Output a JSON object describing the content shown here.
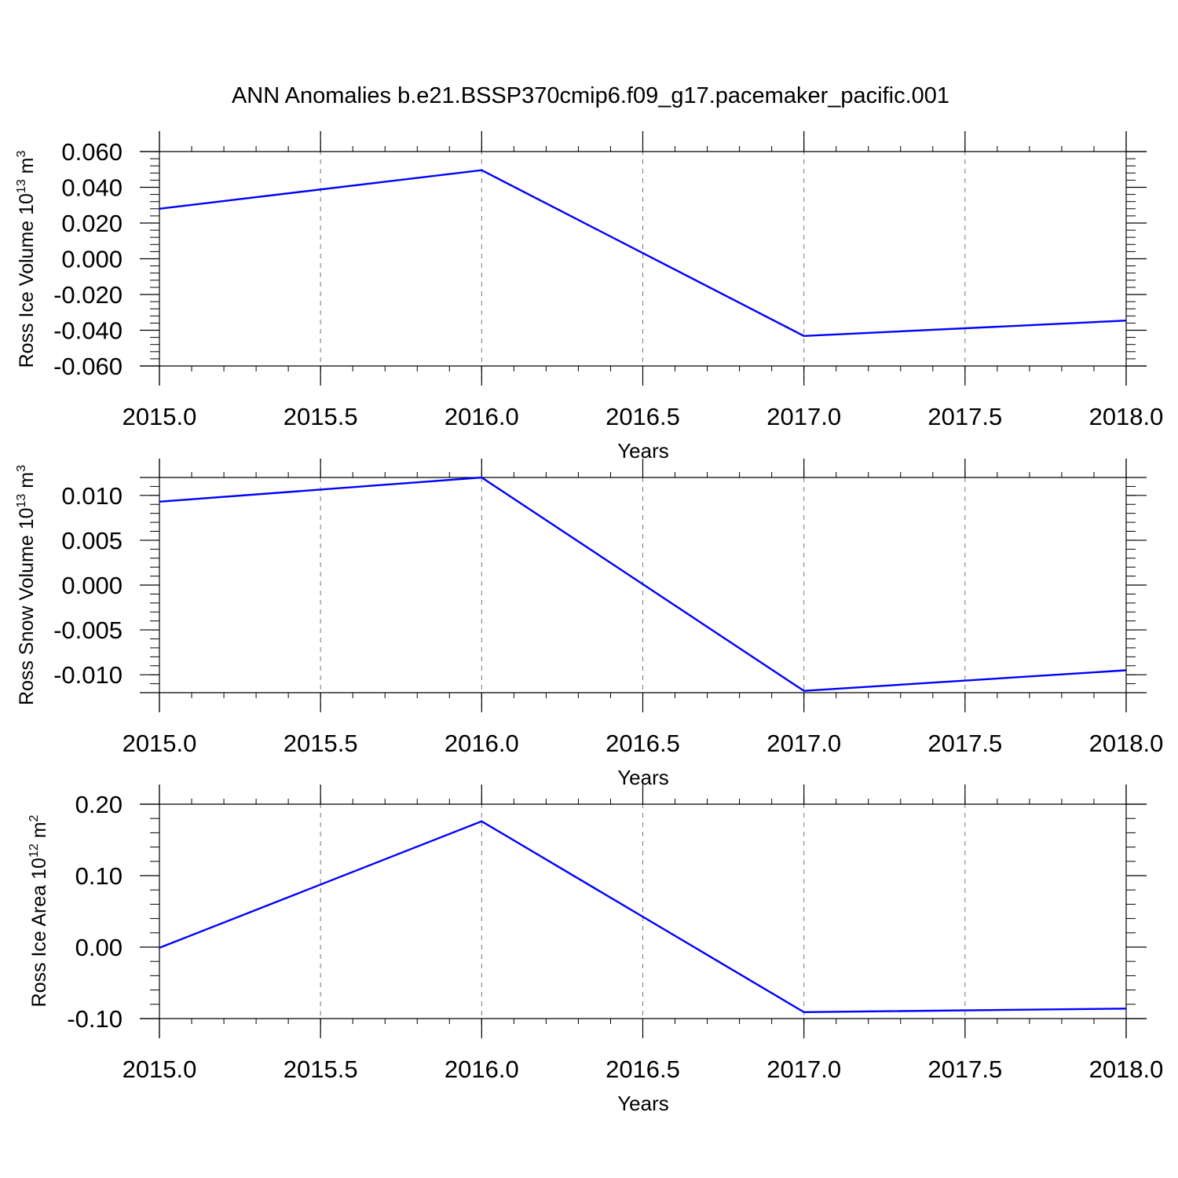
{
  "title": "ANN Anomalies b.e21.BSSP370cmip6.f09_g17.pacemaker_pacific.001",
  "chart_data": [
    {
      "type": "line",
      "title": "",
      "xlabel": "Years",
      "ylabel": {
        "text": "Ross Ice Volume 10",
        "exp": "13",
        "unit": " m",
        "unit_exp": "3"
      },
      "x": [
        2015,
        2016,
        2017,
        2018
      ],
      "x_ticks": [
        "2015.0",
        "2015.5",
        "2016.0",
        "2016.5",
        "2017.0",
        "2017.5",
        "2018.0"
      ],
      "xlim": [
        2015,
        2018
      ],
      "ylim": [
        -0.06,
        0.06
      ],
      "y_ticks": [
        "0.060",
        "0.040",
        "0.020",
        "0.000",
        "-0.020",
        "-0.040",
        "-0.060"
      ],
      "series": [
        {
          "values": [
            0.028,
            0.0496,
            -0.0432,
            -0.0346
          ],
          "color": "#0000ff"
        }
      ],
      "grid": "vertical dashed at x ticks"
    },
    {
      "type": "line",
      "title": "",
      "xlabel": "Years",
      "ylabel": {
        "text": "Ross Snow Volume 10",
        "exp": "13",
        "unit": " m",
        "unit_exp": "3"
      },
      "x": [
        2015,
        2016,
        2017,
        2018
      ],
      "x_ticks": [
        "2015.0",
        "2015.5",
        "2016.0",
        "2016.5",
        "2017.0",
        "2017.5",
        "2018.0"
      ],
      "xlim": [
        2015,
        2018
      ],
      "ylim": [
        -0.012,
        0.012
      ],
      "y_ticks": [
        "0.010",
        "0.005",
        "0.000",
        "-0.005",
        "-0.010"
      ],
      "series": [
        {
          "values": [
            0.0093,
            0.012,
            -0.0118,
            -0.0095
          ],
          "color": "#0000ff"
        }
      ],
      "grid": "vertical dashed at x ticks"
    },
    {
      "type": "line",
      "title": "",
      "xlabel": "Years",
      "ylabel": {
        "text": "Ross Ice Area 10",
        "exp": "12",
        "unit": " m",
        "unit_exp": "2"
      },
      "x": [
        2015,
        2016,
        2017,
        2018
      ],
      "x_ticks": [
        "2015.0",
        "2015.5",
        "2016.0",
        "2016.5",
        "2017.0",
        "2017.5",
        "2018.0"
      ],
      "xlim": [
        2015,
        2018
      ],
      "ylim": [
        -0.1,
        0.2
      ],
      "y_ticks": [
        "0.20",
        "0.10",
        "0.00",
        "-0.10"
      ],
      "series": [
        {
          "values": [
            -0.001,
            0.176,
            -0.091,
            -0.086
          ],
          "color": "#0000ff"
        }
      ],
      "grid": "vertical dashed at x ticks"
    }
  ]
}
